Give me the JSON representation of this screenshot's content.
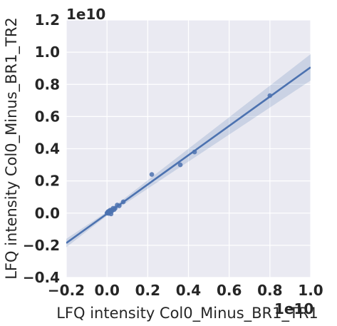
{
  "chart_data": {
    "type": "scatter",
    "xlabel": "LFQ intensity Col0_Minus_BR1_TR1",
    "ylabel": "LFQ intensity Col0_Minus_BR1_TR2",
    "x_offset_label": "1e10",
    "y_offset_label": "1e10",
    "xlim": [
      -0.2,
      1.0
    ],
    "ylim": [
      -0.4,
      1.2
    ],
    "x_ticks": [
      -0.2,
      0.0,
      0.2,
      0.4,
      0.6,
      0.8,
      1.0
    ],
    "y_ticks": [
      -0.4,
      -0.2,
      0.0,
      0.2,
      0.4,
      0.6,
      0.8,
      1.0,
      1.2
    ],
    "x_tick_labels": [
      "−0.2",
      "0.0",
      "0.2",
      "0.4",
      "0.6",
      "0.8",
      "1.0"
    ],
    "y_tick_labels": [
      "−0.4",
      "−0.2",
      "0.0",
      "0.2",
      "0.4",
      "0.6",
      "0.8",
      "1.0",
      "1.2"
    ],
    "grid": true,
    "background_color": "#eaeaf2",
    "point_color": "#4c72b0",
    "line_color": "#4c72b0",
    "band_color": "#4c72b0",
    "points": [
      {
        "x": 0.0,
        "y": 0.0
      },
      {
        "x": 0.002,
        "y": 0.003
      },
      {
        "x": 0.004,
        "y": 0.006
      },
      {
        "x": 0.006,
        "y": 0.01
      },
      {
        "x": 0.008,
        "y": -0.002
      },
      {
        "x": 0.01,
        "y": 0.012
      },
      {
        "x": 0.012,
        "y": 0.005
      },
      {
        "x": 0.015,
        "y": 0.018
      },
      {
        "x": 0.018,
        "y": 0.008
      },
      {
        "x": 0.02,
        "y": -0.005
      },
      {
        "x": 0.022,
        "y": 0.02
      },
      {
        "x": 0.025,
        "y": 0.015
      },
      {
        "x": 0.03,
        "y": 0.03
      },
      {
        "x": 0.035,
        "y": 0.022
      },
      {
        "x": 0.04,
        "y": 0.03
      },
      {
        "x": 0.05,
        "y": 0.05
      },
      {
        "x": 0.06,
        "y": 0.045
      },
      {
        "x": 0.08,
        "y": 0.07
      },
      {
        "x": 0.22,
        "y": 0.24
      },
      {
        "x": 0.36,
        "y": 0.3
      },
      {
        "x": 0.43,
        "y": 0.38
      },
      {
        "x": 0.8,
        "y": 0.73
      }
    ],
    "regression": {
      "slope": 0.91,
      "intercept": -0.004,
      "band_halfwidth_at_x0": 0.012,
      "band_halfwidth_slope": 0.07
    }
  }
}
